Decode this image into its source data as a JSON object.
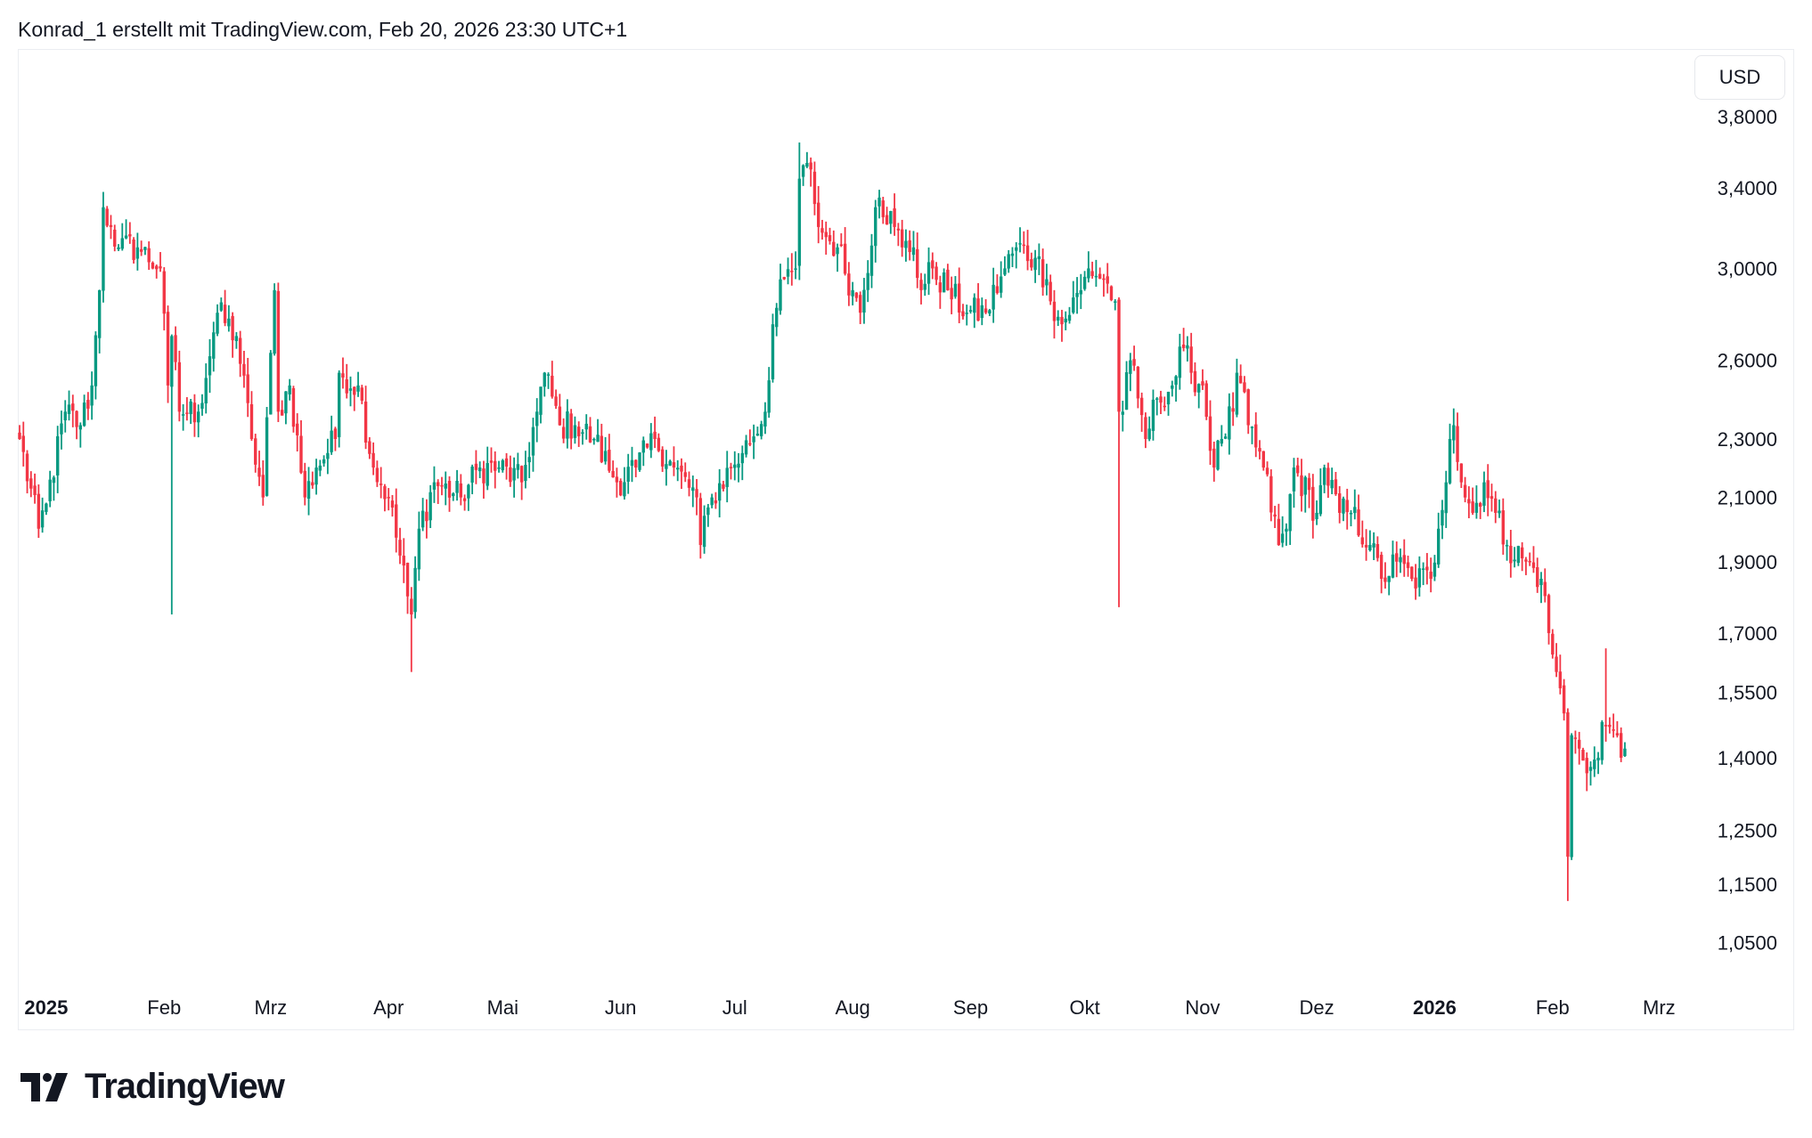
{
  "header": {
    "caption": "Konrad_1 erstellt mit TradingView.com, Feb 20, 2026 23:30 UTC+1"
  },
  "currency_button": "USD",
  "logo": {
    "text": "TradingView"
  },
  "colors": {
    "up": "#089981",
    "down": "#F23645",
    "border": "#ebedf1"
  },
  "chart_data": {
    "type": "candlestick",
    "title": "",
    "scale": "log",
    "currency": "USD",
    "start_date": "2024-12-25",
    "end_date": "2026-02-20",
    "ylim": [
      1.0,
      3.8
    ],
    "y_ticks": [
      {
        "value": 3.8,
        "label": "3,8000"
      },
      {
        "value": 3.4,
        "label": "3,4000"
      },
      {
        "value": 3.0,
        "label": "3,0000"
      },
      {
        "value": 2.6,
        "label": "2,6000"
      },
      {
        "value": 2.3,
        "label": "2,3000"
      },
      {
        "value": 2.1,
        "label": "2,1000"
      },
      {
        "value": 1.9,
        "label": "1,9000"
      },
      {
        "value": 1.7,
        "label": "1,7000"
      },
      {
        "value": 1.55,
        "label": "1,5500"
      },
      {
        "value": 1.4,
        "label": "1,4000"
      },
      {
        "value": 1.25,
        "label": "1,2500"
      },
      {
        "value": 1.15,
        "label": "1,1500"
      },
      {
        "value": 1.05,
        "label": "1,0500"
      }
    ],
    "x_ticks": [
      {
        "date": "2025-01-01",
        "label": "2025",
        "bold": true
      },
      {
        "date": "2025-02-01",
        "label": "Feb"
      },
      {
        "date": "2025-03-01",
        "label": "Mrz"
      },
      {
        "date": "2025-04-01",
        "label": "Apr"
      },
      {
        "date": "2025-05-01",
        "label": "Mai"
      },
      {
        "date": "2025-06-01",
        "label": "Jun"
      },
      {
        "date": "2025-07-01",
        "label": "Jul"
      },
      {
        "date": "2025-08-01",
        "label": "Aug"
      },
      {
        "date": "2025-09-01",
        "label": "Sep"
      },
      {
        "date": "2025-10-01",
        "label": "Okt"
      },
      {
        "date": "2025-11-01",
        "label": "Nov"
      },
      {
        "date": "2025-12-01",
        "label": "Dez"
      },
      {
        "date": "2026-01-01",
        "label": "2026",
        "bold": true
      },
      {
        "date": "2026-02-01",
        "label": "Feb"
      },
      {
        "date": "2026-03-01",
        "label": "Mrz"
      }
    ],
    "close_keypoints": [
      [
        "2024-12-25",
        2.3
      ],
      [
        "2024-12-30",
        2.0
      ],
      [
        "2025-01-01",
        2.08
      ],
      [
        "2025-01-06",
        2.4
      ],
      [
        "2025-01-10",
        2.35
      ],
      [
        "2025-01-13",
        2.5
      ],
      [
        "2025-01-15",
        2.9
      ],
      [
        "2025-01-16",
        3.3
      ],
      [
        "2025-01-18",
        3.2
      ],
      [
        "2025-01-20",
        3.1
      ],
      [
        "2025-01-25",
        3.1
      ],
      [
        "2025-01-31",
        3.0
      ],
      [
        "2025-02-02",
        2.5
      ],
      [
        "2025-02-03",
        2.7
      ],
      [
        "2025-02-05",
        2.4
      ],
      [
        "2025-02-10",
        2.4
      ],
      [
        "2025-02-15",
        2.8
      ],
      [
        "2025-02-20",
        2.7
      ],
      [
        "2025-02-24",
        2.3
      ],
      [
        "2025-02-27",
        2.1
      ],
      [
        "2025-03-02",
        2.9
      ],
      [
        "2025-03-03",
        2.4
      ],
      [
        "2025-03-06",
        2.5
      ],
      [
        "2025-03-10",
        2.1
      ],
      [
        "2025-03-13",
        2.2
      ],
      [
        "2025-03-18",
        2.3
      ],
      [
        "2025-03-19",
        2.55
      ],
      [
        "2025-03-24",
        2.5
      ],
      [
        "2025-03-28",
        2.2
      ],
      [
        "2025-04-01",
        2.1
      ],
      [
        "2025-04-06",
        1.8
      ],
      [
        "2025-04-07",
        1.75
      ],
      [
        "2025-04-09",
        2.0
      ],
      [
        "2025-04-13",
        2.15
      ],
      [
        "2025-04-20",
        2.1
      ],
      [
        "2025-04-25",
        2.2
      ],
      [
        "2025-04-30",
        2.2
      ],
      [
        "2025-05-06",
        2.15
      ],
      [
        "2025-05-10",
        2.4
      ],
      [
        "2025-05-12",
        2.55
      ],
      [
        "2025-05-16",
        2.35
      ],
      [
        "2025-05-20",
        2.35
      ],
      [
        "2025-05-25",
        2.3
      ],
      [
        "2025-05-31",
        2.15
      ],
      [
        "2025-06-05",
        2.2
      ],
      [
        "2025-06-10",
        2.3
      ],
      [
        "2025-06-15",
        2.2
      ],
      [
        "2025-06-21",
        2.1
      ],
      [
        "2025-06-22",
        1.95
      ],
      [
        "2025-06-25",
        2.1
      ],
      [
        "2025-06-30",
        2.2
      ],
      [
        "2025-07-03",
        2.25
      ],
      [
        "2025-07-09",
        2.4
      ],
      [
        "2025-07-11",
        2.75
      ],
      [
        "2025-07-14",
        2.95
      ],
      [
        "2025-07-17",
        3.0
      ],
      [
        "2025-07-18",
        3.45
      ],
      [
        "2025-07-21",
        3.5
      ],
      [
        "2025-07-23",
        3.2
      ],
      [
        "2025-07-25",
        3.15
      ],
      [
        "2025-07-28",
        3.1
      ],
      [
        "2025-08-01",
        2.9
      ],
      [
        "2025-08-03",
        2.8
      ],
      [
        "2025-08-07",
        3.3
      ],
      [
        "2025-08-08",
        3.35
      ],
      [
        "2025-08-12",
        3.2
      ],
      [
        "2025-08-14",
        3.1
      ],
      [
        "2025-08-17",
        3.1
      ],
      [
        "2025-08-19",
        2.9
      ],
      [
        "2025-08-22",
        3.0
      ],
      [
        "2025-08-26",
        2.9
      ],
      [
        "2025-08-31",
        2.8
      ],
      [
        "2025-09-05",
        2.8
      ],
      [
        "2025-09-10",
        3.0
      ],
      [
        "2025-09-13",
        3.1
      ],
      [
        "2025-09-18",
        3.05
      ],
      [
        "2025-09-21",
        2.95
      ],
      [
        "2025-09-22",
        2.85
      ],
      [
        "2025-09-25",
        2.75
      ],
      [
        "2025-09-30",
        2.9
      ],
      [
        "2025-10-02",
        3.0
      ],
      [
        "2025-10-06",
        2.95
      ],
      [
        "2025-10-09",
        2.85
      ],
      [
        "2025-10-10",
        2.4
      ],
      [
        "2025-10-11",
        2.4
      ],
      [
        "2025-10-13",
        2.6
      ],
      [
        "2025-10-15",
        2.45
      ],
      [
        "2025-10-17",
        2.3
      ],
      [
        "2025-10-20",
        2.45
      ],
      [
        "2025-10-24",
        2.5
      ],
      [
        "2025-10-27",
        2.65
      ],
      [
        "2025-10-29",
        2.55
      ],
      [
        "2025-11-01",
        2.5
      ],
      [
        "2025-11-04",
        2.2
      ],
      [
        "2025-11-06",
        2.3
      ],
      [
        "2025-11-09",
        2.4
      ],
      [
        "2025-11-10",
        2.55
      ],
      [
        "2025-11-13",
        2.35
      ],
      [
        "2025-11-17",
        2.2
      ],
      [
        "2025-11-21",
        1.95
      ],
      [
        "2025-11-23",
        2.0
      ],
      [
        "2025-11-25",
        2.2
      ],
      [
        "2025-12-01",
        2.05
      ],
      [
        "2025-12-03",
        2.2
      ],
      [
        "2025-12-07",
        2.05
      ],
      [
        "2025-12-10",
        2.05
      ],
      [
        "2025-12-15",
        1.95
      ],
      [
        "2025-12-18",
        1.85
      ],
      [
        "2025-12-22",
        1.9
      ],
      [
        "2025-12-26",
        1.85
      ],
      [
        "2025-12-31",
        1.85
      ],
      [
        "2026-01-02",
        2.0
      ],
      [
        "2026-01-05",
        2.3
      ],
      [
        "2026-01-06",
        2.35
      ],
      [
        "2026-01-08",
        2.15
      ],
      [
        "2026-01-11",
        2.05
      ],
      [
        "2026-01-14",
        2.15
      ],
      [
        "2026-01-17",
        2.05
      ],
      [
        "2026-01-20",
        1.95
      ],
      [
        "2026-01-25",
        1.9
      ],
      [
        "2026-01-29",
        1.85
      ],
      [
        "2026-01-31",
        1.7
      ],
      [
        "2026-02-02",
        1.6
      ],
      [
        "2026-02-04",
        1.5
      ],
      [
        "2026-02-05",
        1.2
      ],
      [
        "2026-02-06",
        1.45
      ],
      [
        "2026-02-08",
        1.42
      ],
      [
        "2026-02-11",
        1.38
      ],
      [
        "2026-02-13",
        1.4
      ],
      [
        "2026-02-14",
        1.48
      ],
      [
        "2026-02-15",
        1.47
      ],
      [
        "2026-02-17",
        1.46
      ],
      [
        "2026-02-19",
        1.4
      ],
      [
        "2026-02-20",
        1.42
      ]
    ],
    "wick_extremes": [
      {
        "date": "2025-02-03",
        "low": 1.75
      },
      {
        "date": "2025-04-07",
        "low": 1.6
      },
      {
        "date": "2025-07-18",
        "high": 3.65
      },
      {
        "date": "2025-10-10",
        "low": 1.77
      },
      {
        "date": "2026-02-05",
        "low": 1.12
      },
      {
        "date": "2026-02-15",
        "high": 1.66
      }
    ]
  }
}
